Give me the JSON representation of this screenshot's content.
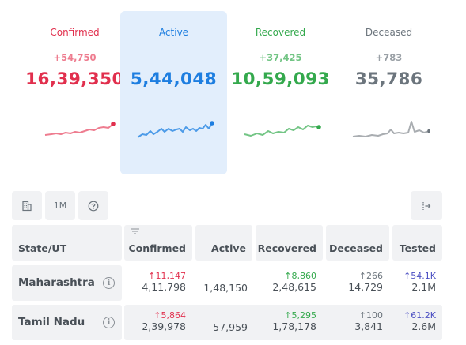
{
  "summary": {
    "confirmed": {
      "label": "Confirmed",
      "delta": "+54,750",
      "total": "16,39,350",
      "color": "#e12f4d"
    },
    "active": {
      "label": "Active",
      "total": "5,44,048",
      "color": "#1e7ee0"
    },
    "recovered": {
      "label": "Recovered",
      "delta": "+37,425",
      "total": "10,59,093",
      "color": "#34a94d"
    },
    "deceased": {
      "label": "Deceased",
      "delta": "+783",
      "total": "35,786",
      "color": "#6c757d"
    }
  },
  "toolbar": {
    "building_icon": "building-icon",
    "range_label": "1M",
    "help_icon": "question-icon",
    "expand_icon": "expand-right-icon"
  },
  "table": {
    "columns": [
      "State/UT",
      "Confirmed",
      "Active",
      "Recovered",
      "Deceased",
      "Tested"
    ],
    "rows": [
      {
        "state": "Maharashtra",
        "confirmed_delta": "↑11,147",
        "confirmed": "4,11,798",
        "active": "1,48,150",
        "recovered_delta": "↑8,860",
        "recovered": "2,48,615",
        "deceased_delta": "↑266",
        "deceased": "14,729",
        "tested_delta": "↑54.1K",
        "tested": "2.1M"
      },
      {
        "state": "Tamil Nadu",
        "confirmed_delta": "↑5,864",
        "confirmed": "2,39,978",
        "active": "57,959",
        "recovered_delta": "↑5,295",
        "recovered": "1,78,178",
        "deceased_delta": "↑100",
        "deceased": "3,841",
        "tested_delta": "↑61.2K",
        "tested": "2.6M"
      }
    ]
  }
}
